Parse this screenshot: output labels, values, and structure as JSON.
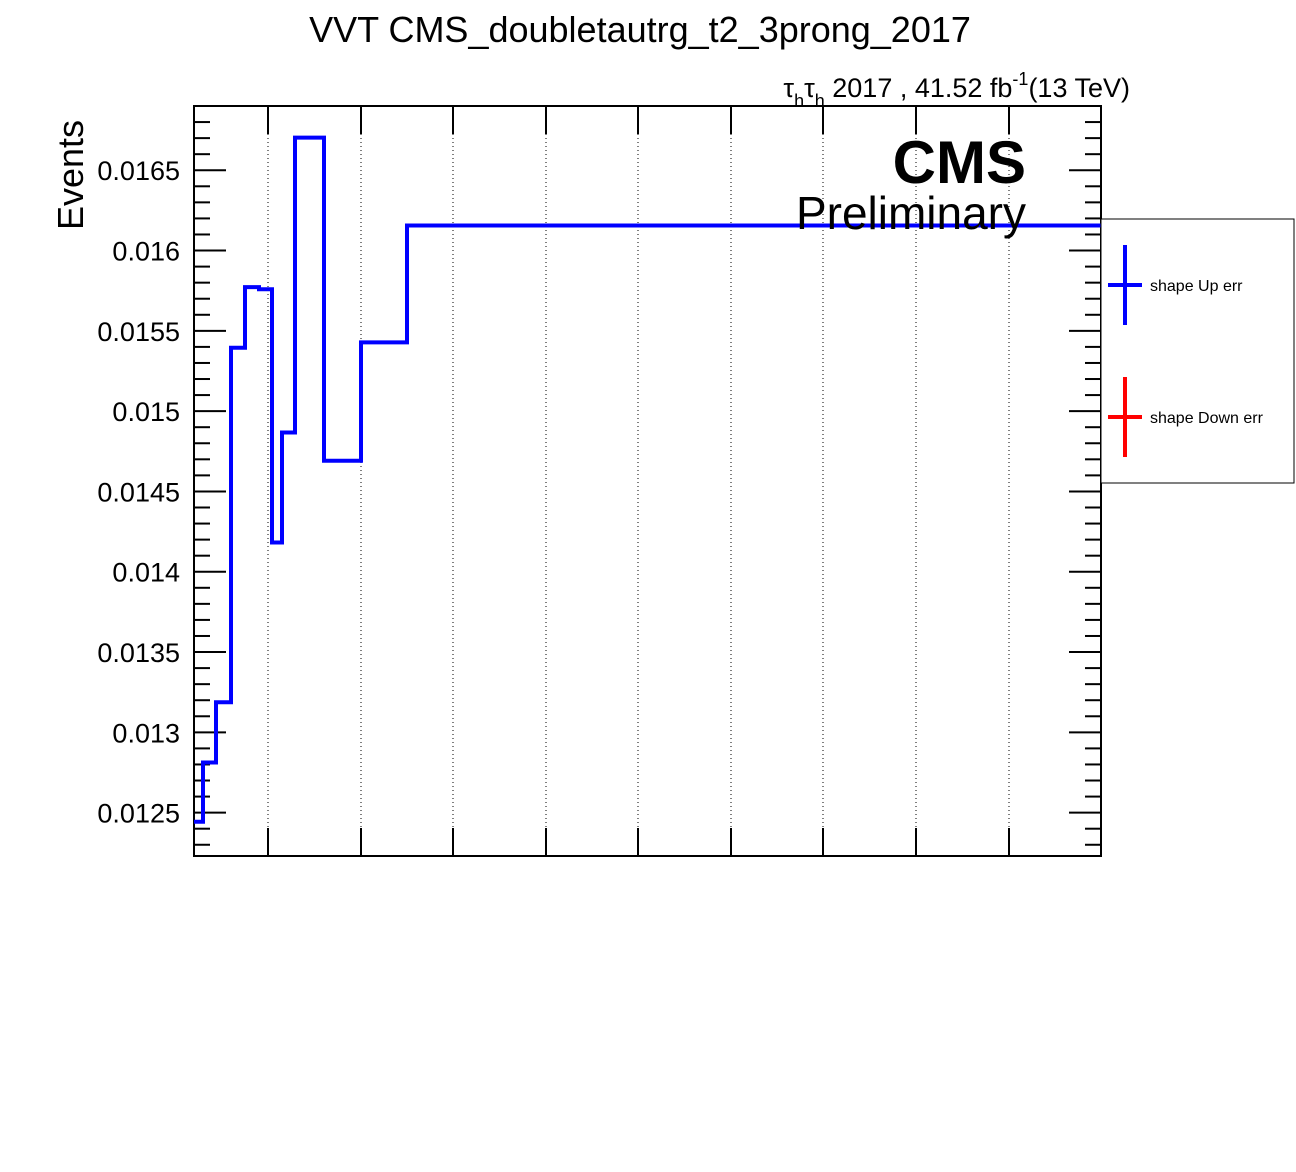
{
  "chart_data": {
    "type": "line",
    "title": "VVT CMS_doubletautrg_t2_3prong_2017",
    "lumi": {
      "channel": "τhτh",
      "tau": "τ",
      "sub": "h",
      "year_lumi": " 2017 , 41.52 fb",
      "exponent": "-1",
      "energy": "(13 TeV)"
    },
    "cms_label": "CMS",
    "cms_sublabel": "Preliminary",
    "xlabel": "",
    "ylabel": "Events",
    "ylim": [
      0.01223,
      0.0169
    ],
    "y_ticks": [
      "0.0125",
      "0.013",
      "0.0135",
      "0.014",
      "0.0145",
      "0.015",
      "0.0155",
      "0.016",
      "0.0165"
    ],
    "grid_x": true,
    "grid_y": false,
    "legend_position": "right",
    "series": [
      {
        "name": "shape Up err",
        "color": "#0000ff",
        "bin_edges": [
          0,
          1,
          2,
          3,
          4,
          5,
          6,
          7,
          8,
          9,
          10,
          11,
          12,
          13,
          14,
          15,
          16,
          17,
          18,
          19,
          20
        ],
        "values": [
          0.012443,
          0.012812,
          0.013187,
          0.015395,
          0.015772,
          0.015759,
          0.014182,
          0.014867,
          0.016703,
          0.014691,
          0.015428,
          0.016156,
          0.016156,
          0.016156,
          0.016156,
          0.016156,
          0.016156,
          0.016156,
          0.016156,
          0.016156
        ]
      },
      {
        "name": "shape Down err",
        "color": "#ff0000",
        "values": []
      }
    ]
  },
  "icons": {
    "legend_up": "cross-marker-icon",
    "legend_down": "cross-marker-icon"
  }
}
